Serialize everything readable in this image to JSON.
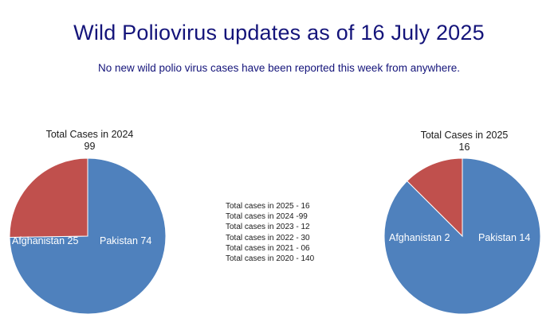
{
  "header": {
    "title": "Wild Poliovirus updates as of 16 July 2025",
    "subtitle": "No new wild polio virus cases have been reported this week from anywhere."
  },
  "colors": {
    "pakistan": "#4f81bd",
    "afghanistan": "#c0504d",
    "title": "#14147a"
  },
  "summary": {
    "lines": [
      "Total cases in 2025 - 16",
      "Total cases in 2024 -99",
      "Total cases in 2023 - 12",
      "Total cases in 2022 - 30",
      "Total cases in 2021 - 06",
      "Total cases in 2020 - 140"
    ]
  },
  "chart_data": [
    {
      "type": "pie",
      "title": "Total Cases in 2024",
      "total": "99",
      "categories": [
        "Pakistan",
        "Afghanistan"
      ],
      "values": [
        74,
        25
      ],
      "labels": [
        "Pakistan 74",
        "Afghanistan 25"
      ]
    },
    {
      "type": "pie",
      "title": "Total Cases in 2025",
      "total": "16",
      "categories": [
        "Pakistan",
        "Afghanistan"
      ],
      "values": [
        14,
        2
      ],
      "labels": [
        "Pakistan 14",
        "Afghanistan 2"
      ]
    }
  ]
}
